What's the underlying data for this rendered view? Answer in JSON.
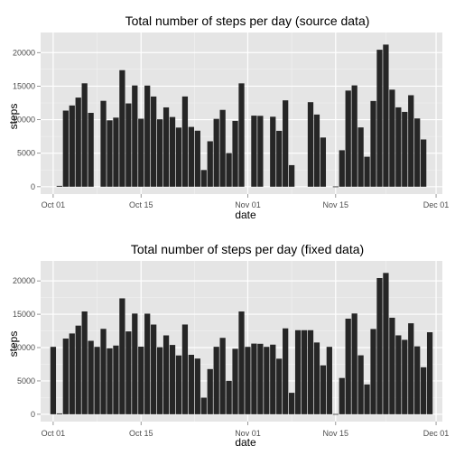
{
  "colors": {
    "panel_background": "#e5e5e5",
    "grid_major": "#ffffff",
    "grid_minor": "#f2f2f2",
    "bar_fill": "#262626",
    "tick_text": "#4d4d4d"
  },
  "chart_data": [
    {
      "type": "bar",
      "title": "Total number of steps per day (source data)",
      "xlabel": "date",
      "ylabel": "steps",
      "x_axis_kind": "date",
      "xlim": [
        "2012-09-29",
        "2012-12-02"
      ],
      "ylim": [
        -1100,
        23000
      ],
      "x_ticks": [
        {
          "date": "2012-10-01",
          "label": "Oct 01"
        },
        {
          "date": "2012-10-15",
          "label": "Oct 15"
        },
        {
          "date": "2012-11-01",
          "label": "Nov 01"
        },
        {
          "date": "2012-11-15",
          "label": "Nov 15"
        },
        {
          "date": "2012-12-01",
          "label": "Dec 01"
        }
      ],
      "y_ticks": [
        0,
        5000,
        10000,
        15000,
        20000
      ],
      "y_tick_labels": [
        "0",
        "5000",
        "10000",
        "15000",
        "20000"
      ],
      "grid": true,
      "start_date": "2012-10-01",
      "values": [
        null,
        126,
        11352,
        12116,
        13294,
        15420,
        11015,
        null,
        12811,
        9900,
        10304,
        17382,
        12426,
        15098,
        10139,
        15084,
        13452,
        10056,
        11829,
        10395,
        8821,
        13460,
        8918,
        8355,
        2492,
        6778,
        10119,
        11458,
        5018,
        9819,
        15414,
        null,
        10600,
        10571,
        null,
        10439,
        8334,
        12883,
        3219,
        null,
        null,
        12608,
        10765,
        7336,
        null,
        41,
        5441,
        14339,
        15110,
        8841,
        4472,
        12787,
        20427,
        21194,
        14478,
        11834,
        11162,
        13646,
        10183,
        7047,
        null
      ]
    },
    {
      "type": "bar",
      "title": "Total number of steps per day (fixed data)",
      "xlabel": "date",
      "ylabel": "steps",
      "x_axis_kind": "date",
      "xlim": [
        "2012-09-29",
        "2012-12-02"
      ],
      "ylim": [
        -1100,
        23000
      ],
      "x_ticks": [
        {
          "date": "2012-10-01",
          "label": "Oct 01"
        },
        {
          "date": "2012-10-15",
          "label": "Oct 15"
        },
        {
          "date": "2012-11-01",
          "label": "Nov 01"
        },
        {
          "date": "2012-11-15",
          "label": "Nov 15"
        },
        {
          "date": "2012-12-01",
          "label": "Dec 01"
        }
      ],
      "y_ticks": [
        0,
        5000,
        10000,
        15000,
        20000
      ],
      "y_tick_labels": [
        "0",
        "5000",
        "10000",
        "15000",
        "20000"
      ],
      "grid": true,
      "start_date": "2012-10-01",
      "values": [
        10109,
        126,
        11352,
        12116,
        13294,
        15420,
        11015,
        10109,
        12811,
        9900,
        10304,
        17382,
        12426,
        15098,
        10139,
        15084,
        13452,
        10056,
        11829,
        10395,
        8821,
        13460,
        8918,
        8355,
        2492,
        6778,
        10119,
        11458,
        5018,
        9819,
        15414,
        10109,
        10600,
        10571,
        10109,
        10439,
        8334,
        12883,
        3219,
        12608,
        12608,
        12608,
        10765,
        7336,
        10109,
        41,
        5441,
        14339,
        15110,
        8841,
        4472,
        12787,
        20427,
        21194,
        14478,
        11834,
        11162,
        13646,
        10183,
        7047,
        12300
      ]
    }
  ]
}
